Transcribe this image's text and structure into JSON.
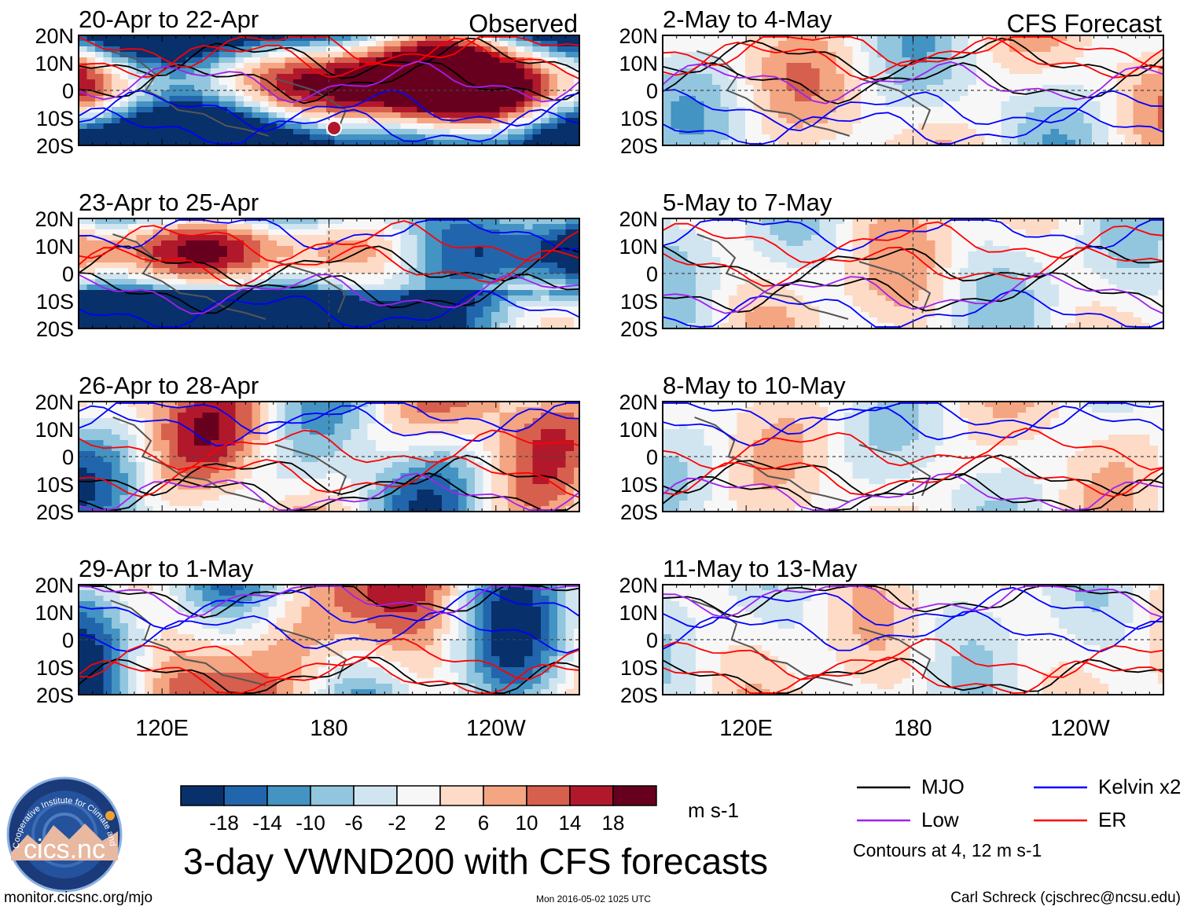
{
  "chart_data": {
    "type": "heatmap",
    "title": "3-day VWND200 with CFS forecasts",
    "variable": "VWND200",
    "units": "m s-1",
    "contour_note": "Contours at 4, 12 m s-1",
    "column_labels": {
      "observed": "Observed",
      "forecast": "CFS Forecast"
    },
    "y_ticks": [
      "20N",
      "10N",
      "0",
      "10S",
      "20S"
    ],
    "x_ticks": [
      "120E",
      "180",
      "120W"
    ],
    "ylim": [
      -20,
      20
    ],
    "xlim_deg_east": [
      90,
      270
    ],
    "panels_observed": [
      {
        "label": "20-Apr to 22-Apr",
        "pattern": "strong"
      },
      {
        "label": "23-Apr to 25-Apr",
        "pattern": "strong2"
      },
      {
        "label": "26-Apr to 28-Apr",
        "pattern": "moderate"
      },
      {
        "label": "29-Apr to 1-May",
        "pattern": "moderate2"
      }
    ],
    "panels_forecast": [
      {
        "label": "2-May to 4-May",
        "pattern": "weak"
      },
      {
        "label": "5-May to 7-May",
        "pattern": "weak2"
      },
      {
        "label": "8-May to 10-May",
        "pattern": "weak3"
      },
      {
        "label": "11-May to 13-May",
        "pattern": "weak4"
      }
    ],
    "colorbar": {
      "levels": [
        "-18",
        "-14",
        "-10",
        "-6",
        "-2",
        "2",
        "6",
        "10",
        "14",
        "18"
      ],
      "colors": [
        "#08306b",
        "#2166ac",
        "#4393c3",
        "#92c5de",
        "#d1e5f0",
        "#f7f7f7",
        "#fddbc7",
        "#f4a582",
        "#d6604d",
        "#b2182b",
        "#67001f"
      ]
    },
    "legend": [
      {
        "label": "MJO",
        "color": "#000000"
      },
      {
        "label": "Kelvin x2",
        "color": "#0000ff"
      },
      {
        "label": "Low",
        "color": "#a020f0"
      },
      {
        "label": "ER",
        "color": "#ff0000"
      }
    ]
  },
  "logo_text": "cics.nc",
  "logo_ring_text": "Cooperative Institute for Climate and Satellites",
  "footer": {
    "website": "monitor.cicsnc.org/mjo",
    "timestamp": "Mon 2016-05-02 1025 UTC",
    "author": "Carl Schreck (cjschrec@ncsu.edu)"
  }
}
